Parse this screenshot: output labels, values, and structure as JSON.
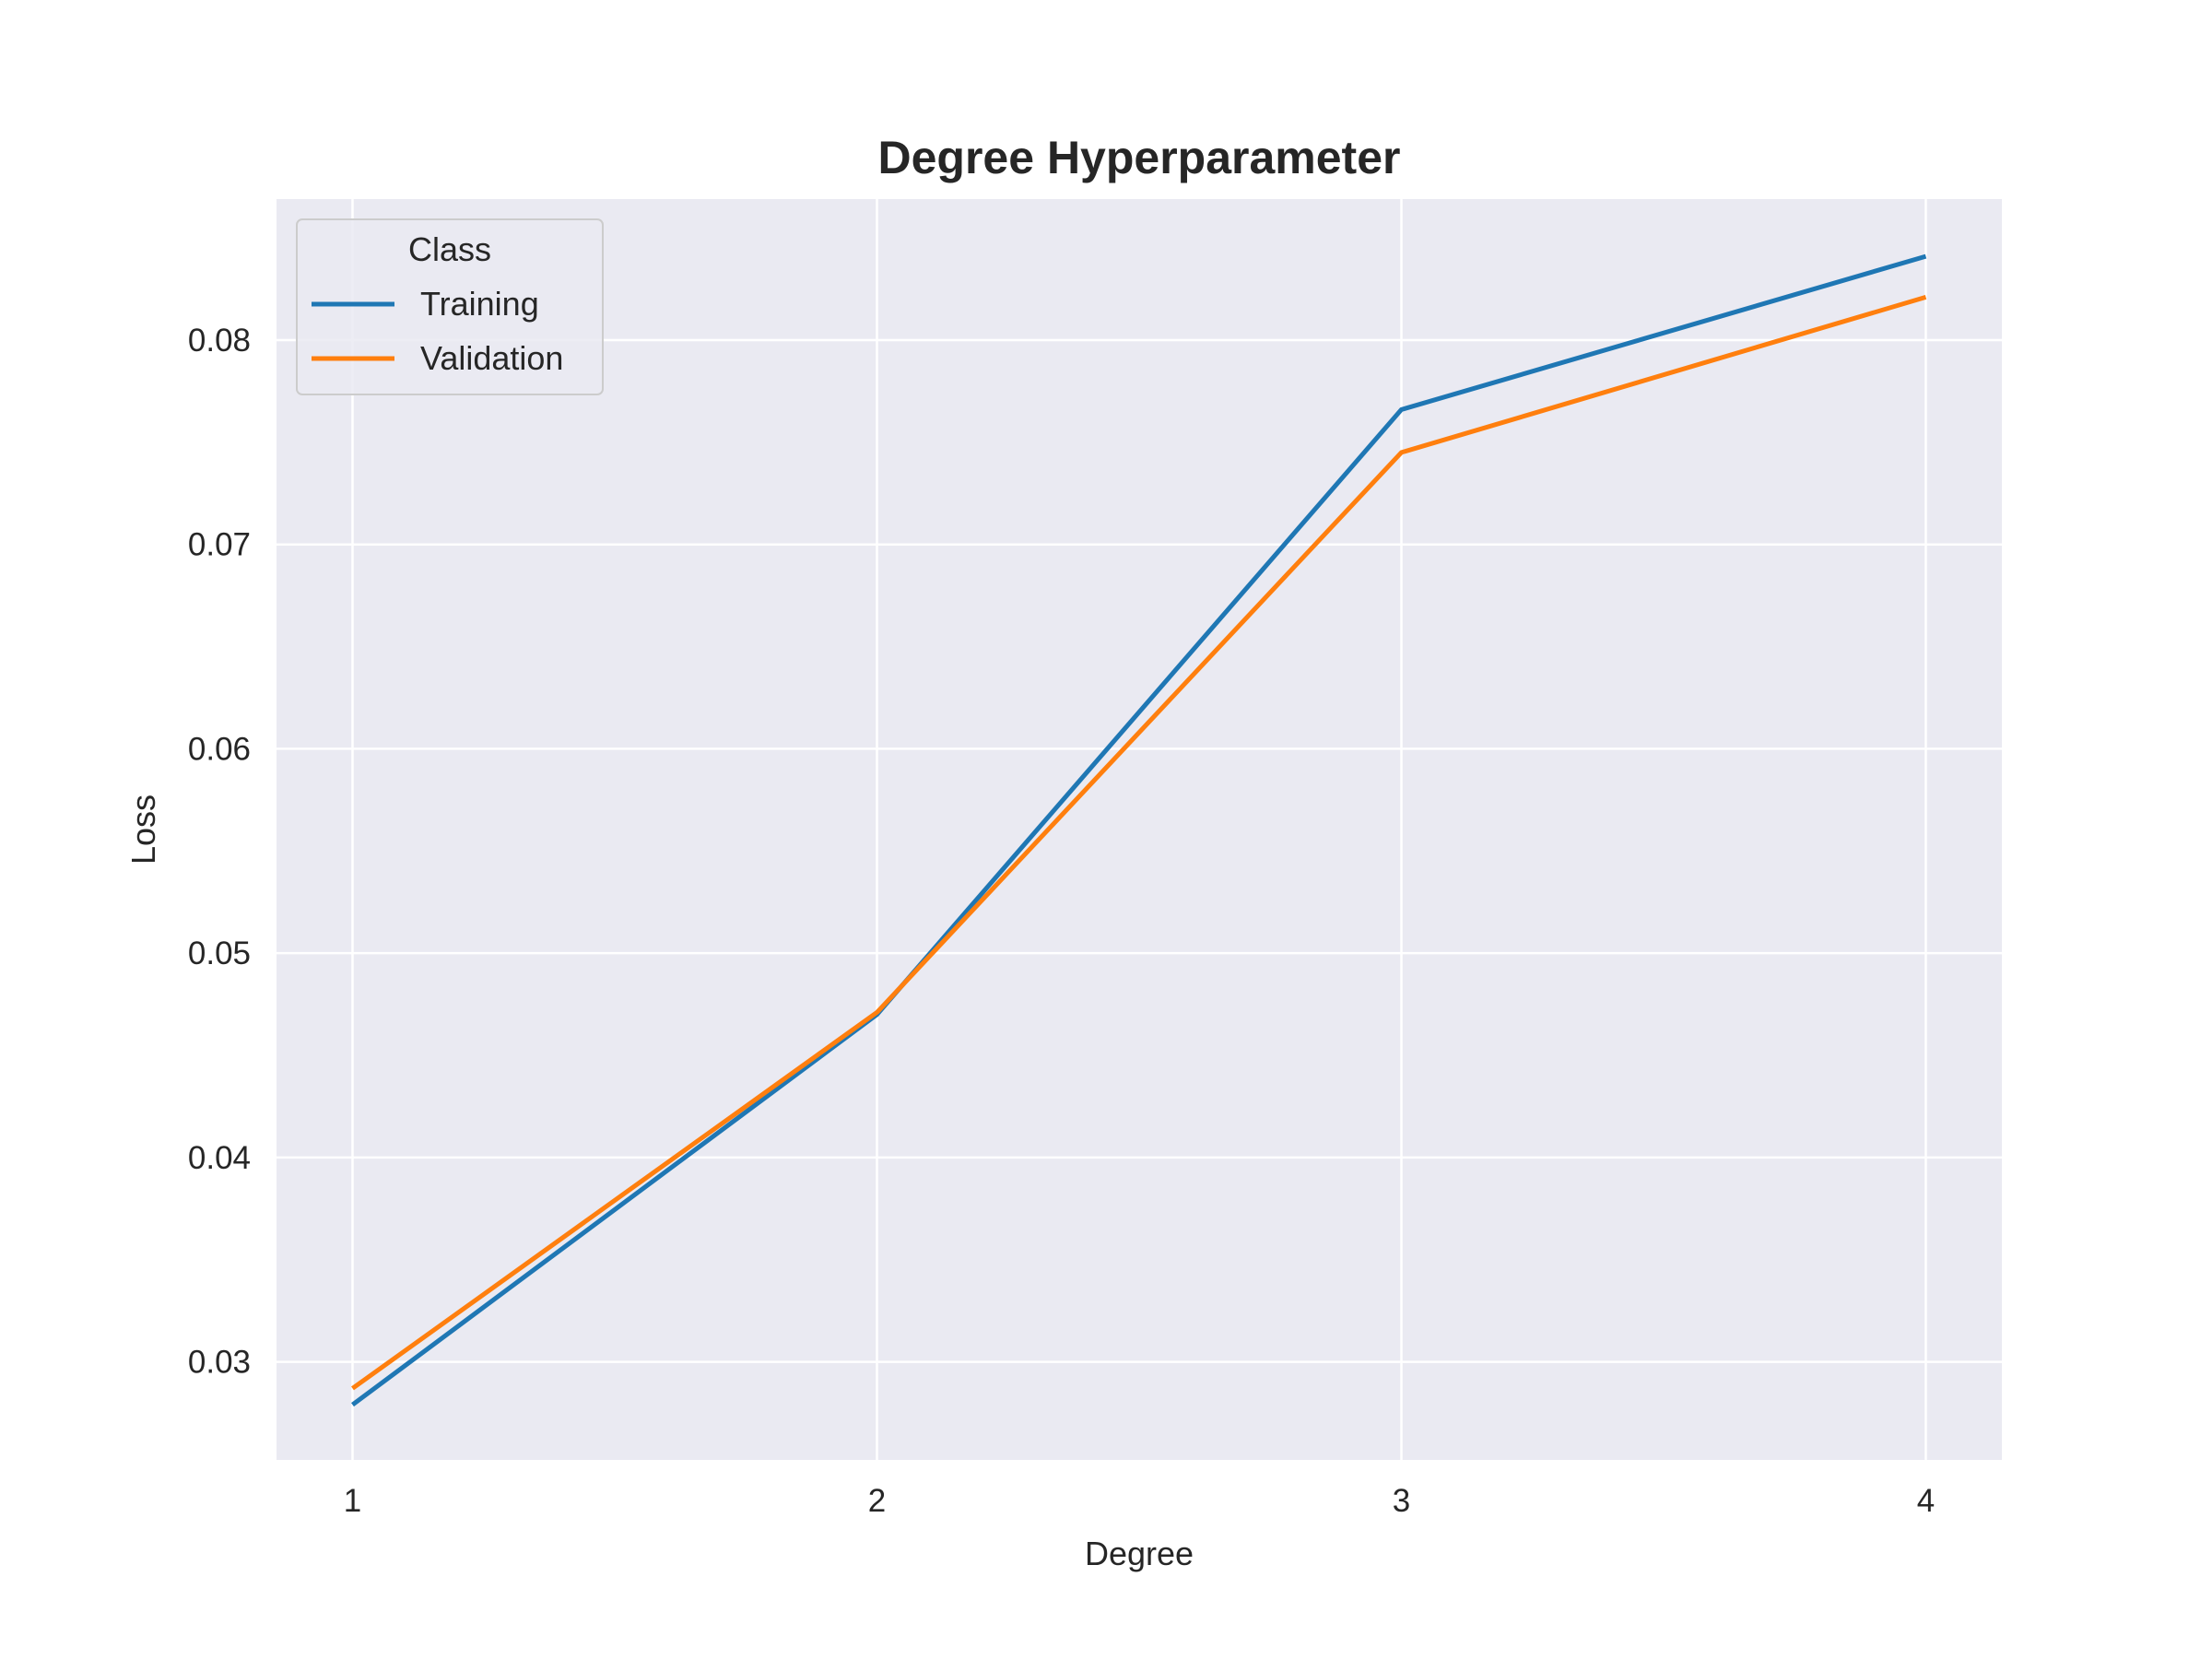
{
  "chart_data": {
    "type": "line",
    "title": "Degree Hyperparameter",
    "xlabel": "Degree",
    "ylabel": "Loss",
    "x": [
      1,
      2,
      3,
      4
    ],
    "xticks": [
      "1",
      "2",
      "3",
      "4"
    ],
    "xlim": [
      0.855,
      4.145
    ],
    "yticks": [
      "0.03",
      "0.04",
      "0.05",
      "0.06",
      "0.07",
      "0.08"
    ],
    "ytick_values": [
      0.03,
      0.04,
      0.05,
      0.06,
      0.07,
      0.08
    ],
    "ylim": [
      0.0252,
      0.0869
    ],
    "grid": true,
    "legend": {
      "title": "Class",
      "position": "top-left"
    },
    "series": [
      {
        "name": "Training",
        "color": "#1f77b4",
        "values": [
          0.0279,
          0.047,
          0.0766,
          0.0841
        ]
      },
      {
        "name": "Validation",
        "color": "#ff7f0e",
        "values": [
          0.0287,
          0.0471,
          0.0745,
          0.0821
        ]
      }
    ],
    "colors": {
      "plot_background": "#eaeaf2",
      "grid": "#ffffff",
      "text": "#262626"
    }
  }
}
